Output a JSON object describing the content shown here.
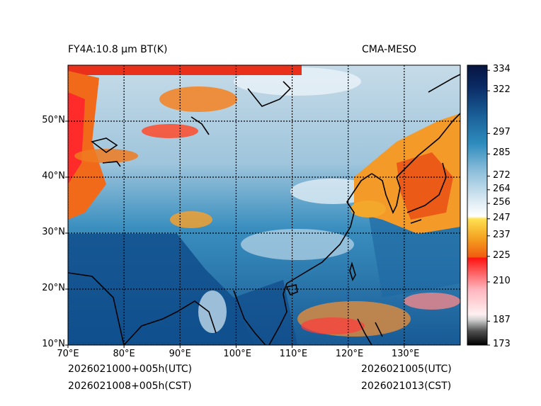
{
  "title_left": "FY4A:10.8 µm BT(K)",
  "title_right": "CMA-MESO",
  "footer": {
    "left_line1": "2026021000+005h(UTC)",
    "left_line2": "2026021008+005h(CST)",
    "right_line1": "2026021005(UTC)",
    "right_line2": "2026021013(CST)"
  },
  "map": {
    "lon_range": [
      70,
      140
    ],
    "lat_range": [
      10,
      60
    ],
    "lon_ticks": [
      "70°E",
      "80°E",
      "90°E",
      "100°E",
      "110°E",
      "120°E",
      "130°E"
    ],
    "lat_ticks": [
      "10°N",
      "20°N",
      "30°N",
      "40°N",
      "50°N"
    ],
    "gridlines": "dotted"
  },
  "colorbar": {
    "range": [
      173,
      337
    ],
    "ticks": [
      "334",
      "322",
      "297",
      "285",
      "272",
      "264",
      "256",
      "247",
      "237",
      "225",
      "210",
      "187",
      "173"
    ],
    "tick_values": [
      334,
      322,
      297,
      285,
      272,
      264,
      256,
      247,
      237,
      225,
      210,
      187,
      173
    ],
    "colors": {
      "cold_black": "#000000",
      "gray": "#9a9a9a",
      "light_pink": "#ffd8dc",
      "red": "#ff1a1a",
      "orange": "#f07a10",
      "yellow": "#ffd23c",
      "white": "#f4f8fb",
      "light_blue": "#c4dcea",
      "blue": "#2a86b4",
      "dark_blue": "#0b2c66",
      "navy": "#061440"
    }
  }
}
